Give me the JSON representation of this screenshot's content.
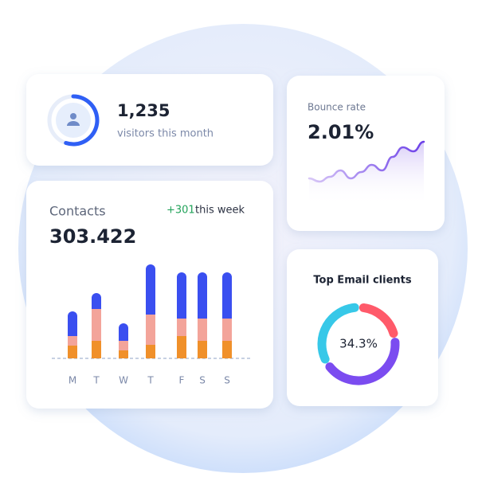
{
  "visitors": {
    "value_text": "1,235",
    "caption": "visitors this month",
    "progress": 55,
    "color": "#2f5ff5"
  },
  "bounce": {
    "title": "Bounce rate",
    "value_text": "2.01%",
    "line_values": [
      4,
      0,
      6,
      14,
      4,
      12,
      21,
      14,
      31,
      43,
      38,
      50
    ],
    "color": "#7b4cf0"
  },
  "contacts": {
    "title": "Contacts",
    "change": "+301",
    "change_caption": "this week",
    "value_text": "303.422",
    "chart_data": {
      "type": "bar",
      "categories": [
        "M",
        "T",
        "W",
        "T",
        "F",
        "S",
        "S"
      ],
      "series": [
        {
          "color": "#f0902a",
          "values": [
            16,
            22,
            10,
            17,
            28,
            22,
            22
          ]
        },
        {
          "color": "#f3a49a",
          "values": [
            12,
            40,
            12,
            38,
            22,
            28,
            28
          ]
        },
        {
          "color": "#3a4ff0",
          "values": [
            31,
            20,
            22,
            63,
            58,
            58,
            58
          ]
        }
      ]
    }
  },
  "email": {
    "title": "Top Email clients",
    "center_label": "34.3%",
    "segments": [
      {
        "color": "#ff5a6a",
        "value": 18
      },
      {
        "color": "#7b4cf0",
        "value": 40
      },
      {
        "color": "#37c8e8",
        "value": 30
      }
    ]
  }
}
